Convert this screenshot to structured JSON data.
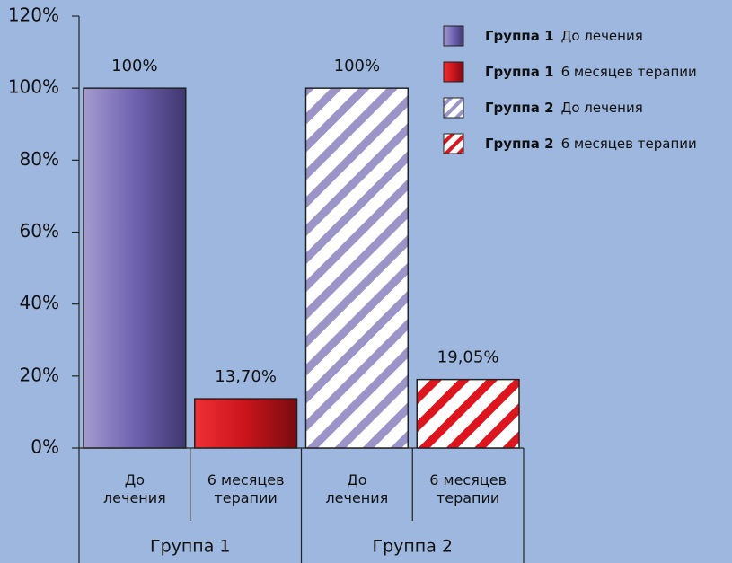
{
  "chart_data": {
    "type": "bar",
    "groups": [
      {
        "name": "Группа 1",
        "categories": [
          "До лечения",
          "6 месяцев терапии"
        ],
        "values": [
          100,
          13.7
        ],
        "value_labels": [
          "100%",
          "13,70%"
        ]
      },
      {
        "name": "Группа 2",
        "categories": [
          "До лечения",
          "6 месяцев терапии"
        ],
        "values": [
          100,
          19.05
        ],
        "value_labels": [
          "100%",
          "19,05%"
        ]
      }
    ],
    "colors": [
      "#6a5fae",
      "#d4151c"
    ],
    "group_styles": [
      "gradient",
      "hatch"
    ],
    "ylim": [
      0,
      120
    ],
    "yticks": [
      {
        "value": 0,
        "label": "0%"
      },
      {
        "value": 20,
        "label": "20%"
      },
      {
        "value": 40,
        "label": "40%"
      },
      {
        "value": 60,
        "label": "60%"
      },
      {
        "value": 80,
        "label": "80%"
      },
      {
        "value": 100,
        "label": "100%"
      },
      {
        "value": 120,
        "label": "120%"
      }
    ],
    "legend": "top-right"
  }
}
